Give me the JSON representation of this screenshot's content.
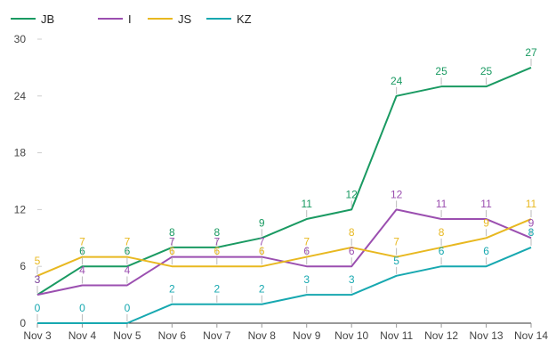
{
  "chart_data": {
    "type": "line",
    "categories": [
      "Nov 3",
      "Nov 4",
      "Nov 5",
      "Nov 6",
      "Nov 7",
      "Nov 8",
      "Nov 9",
      "Nov 10",
      "Nov 11",
      "Nov 12",
      "Nov 13",
      "Nov 14"
    ],
    "series": [
      {
        "name": "JB",
        "color": "#1a9a62",
        "values": [
          3,
          6,
          6,
          8,
          8,
          9,
          11,
          12,
          24,
          25,
          25,
          27
        ]
      },
      {
        "name": "I",
        "color": "#9b4fb0",
        "values": [
          3,
          4,
          4,
          7,
          7,
          7,
          6,
          6,
          12,
          11,
          11,
          9
        ]
      },
      {
        "name": "JS",
        "color": "#e8b820",
        "values": [
          5,
          7,
          7,
          6,
          6,
          6,
          7,
          8,
          7,
          8,
          9,
          11
        ]
      },
      {
        "name": "KZ",
        "color": "#17a8b0",
        "values": [
          0,
          0,
          0,
          2,
          2,
          2,
          3,
          3,
          5,
          6,
          6,
          8
        ]
      }
    ],
    "ylim": [
      0,
      30
    ],
    "yticks": [
      0,
      6,
      12,
      18,
      24,
      30
    ],
    "legend_position": "top-left",
    "grid": false
  }
}
